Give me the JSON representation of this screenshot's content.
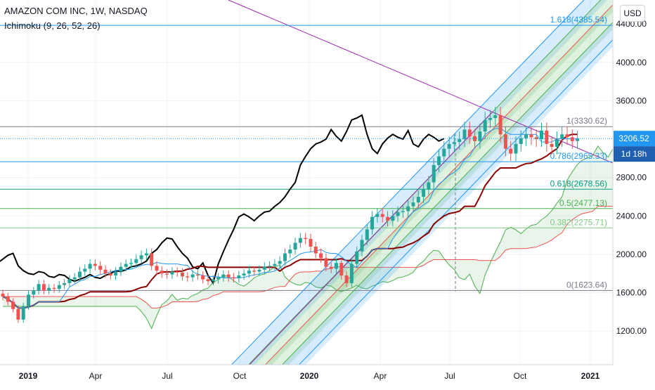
{
  "header": {
    "symbol": "AMAZON COM INC, 1W, NASDAQ",
    "indicator": "Ichimoku (9, 26, 52, 26)",
    "currency": "USD"
  },
  "colors": {
    "up": "#26a69a",
    "down": "#ef5350",
    "lagging": "#000000",
    "base": "#8b0000",
    "conversion": "#2196f3",
    "fib": "#4caf50",
    "pitchfork": "#2196f3",
    "trendline": "#9c27b0",
    "price_tag": "#2196f3",
    "countdown_tag": "#1e5fb0"
  },
  "chart_data": {
    "type": "candlestick",
    "x_axis": {
      "labels": [
        "2019",
        "Apr",
        "Jul",
        "Oct",
        "2020",
        "Apr",
        "Jul",
        "Oct",
        "2021"
      ]
    },
    "y_axis": {
      "range": [
        850,
        4650
      ],
      "labels": [
        "4400.00",
        "4000.00",
        "3600.00",
        "2800.00",
        "2400.00",
        "2000.00",
        "1600.00",
        "1200.00"
      ]
    },
    "last_price": "3206.52",
    "countdown": "1d 18h",
    "fib_levels": [
      {
        "label": "1.618(4385.54)",
        "value": 4385.54
      },
      {
        "label": "1(3330.62)",
        "value": 3330.62
      },
      {
        "label": "0.786(2965.33)",
        "value": 2965.33
      },
      {
        "label": "0.618(2678.56)",
        "value": 2678.56
      },
      {
        "label": "0.5(2477.13)",
        "value": 2477.13
      },
      {
        "label": "0.382(2275.71)",
        "value": 2275.71
      },
      {
        "label": "0(1623.64)",
        "value": 1623.64
      }
    ],
    "weekly_close": [
      1560,
      1505,
      1430,
      1320,
      1460,
      1580,
      1620,
      1690,
      1625,
      1650,
      1640,
      1680,
      1700,
      1740,
      1760,
      1820,
      1850,
      1900,
      1880,
      1840,
      1800,
      1780,
      1820,
      1870,
      1900,
      1910,
      1950,
      1990,
      2010,
      1880,
      1830,
      1800,
      1790,
      1820,
      1810,
      1770,
      1760,
      1790,
      1780,
      1740,
      1720,
      1740,
      1760,
      1790,
      1760,
      1750,
      1780,
      1800,
      1830,
      1820,
      1840,
      1870,
      1880,
      1900,
      1930,
      2010,
      2050,
      2120,
      2170,
      2160,
      2080,
      2010,
      1960,
      1870,
      1850,
      1910,
      1780,
      1700,
      1900,
      2030,
      2150,
      2260,
      2390,
      2420,
      2390,
      2350,
      2400,
      2440,
      2450,
      2500,
      2540,
      2600,
      2680,
      2750,
      2930,
      3020,
      3100,
      3150,
      3170,
      3200,
      3300,
      3230,
      3180,
      3280,
      3400,
      3420,
      3450,
      3250,
      3100,
      3050,
      3150,
      3210,
      3250,
      3220,
      3200,
      3290,
      3150,
      3120,
      3200,
      3250,
      3220,
      3180,
      3206
    ]
  }
}
